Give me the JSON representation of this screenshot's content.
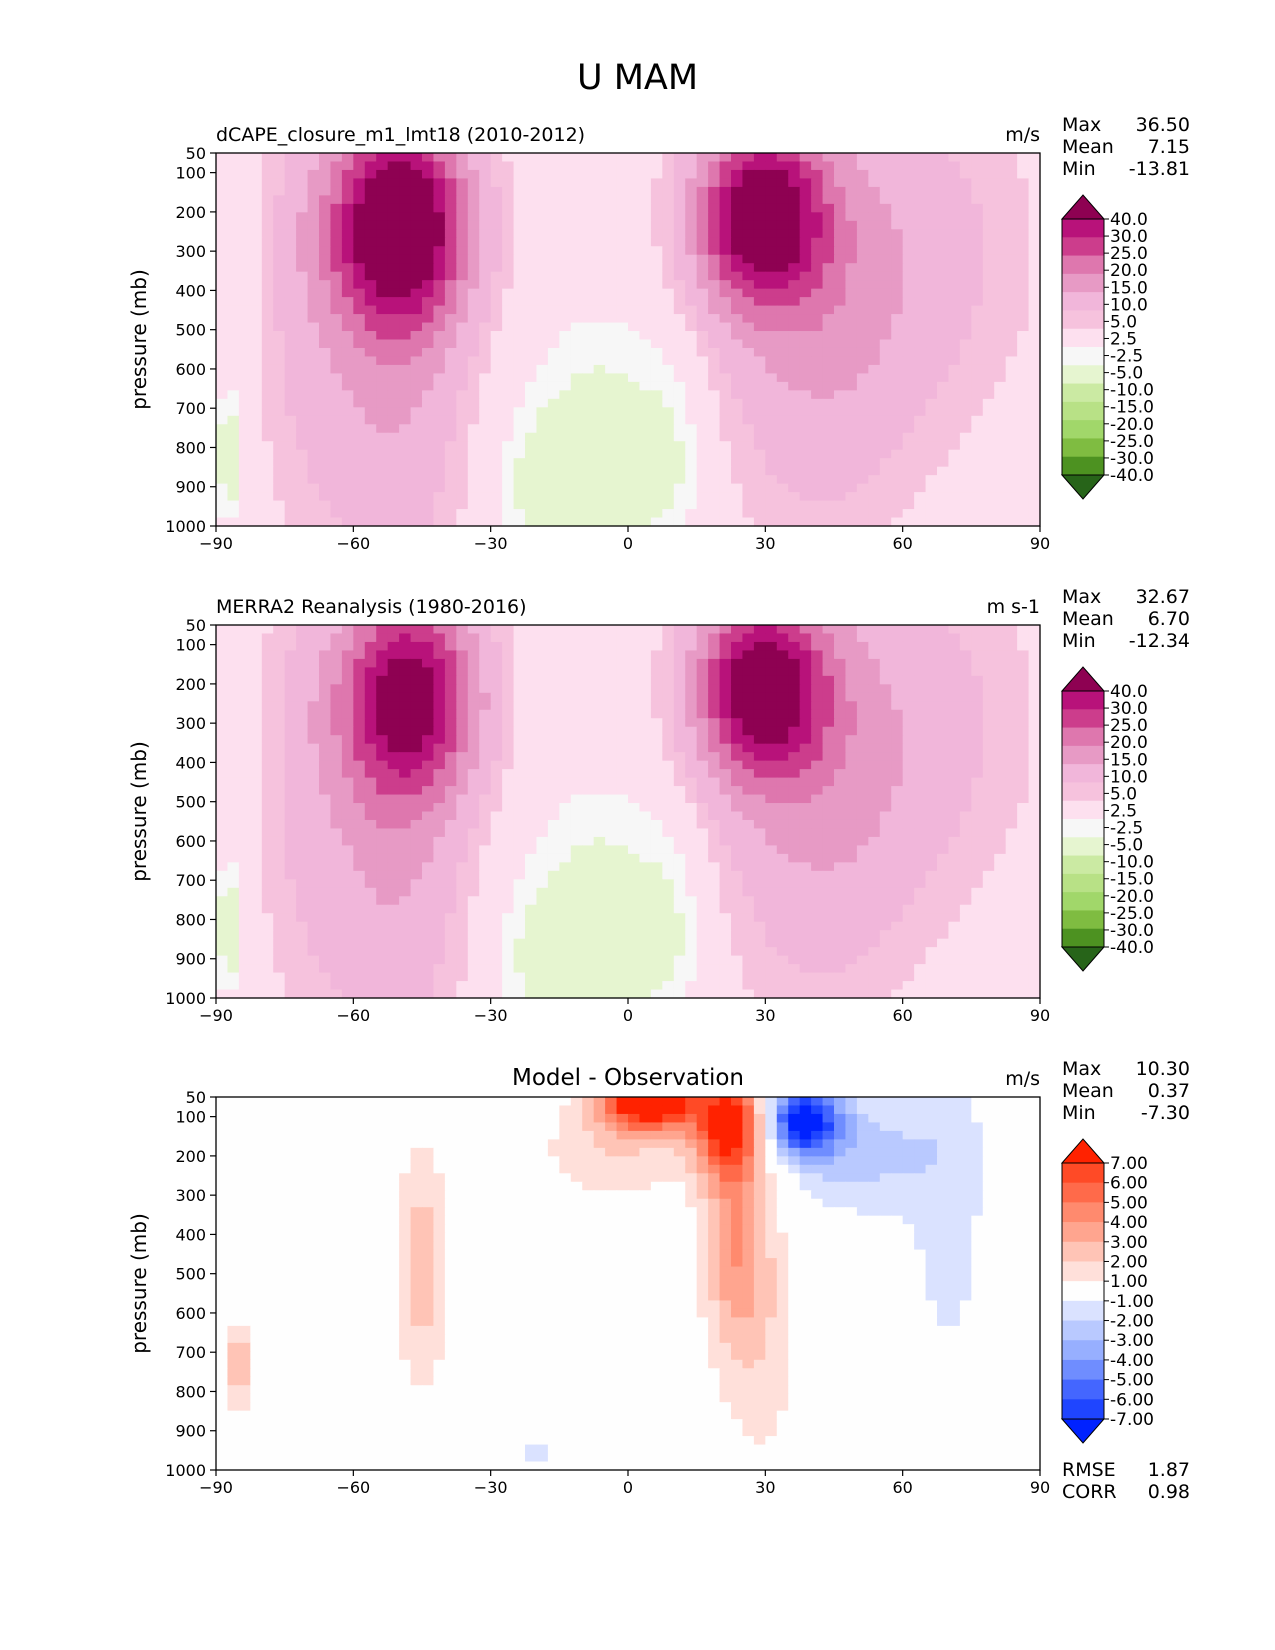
{
  "figure_title": "U MAM",
  "colors": {
    "pinkgreen": [
      "#276419",
      "#4d9221",
      "#7fbc41",
      "#a1d76a",
      "#b8e186",
      "#cbeaa3",
      "#e6f5d0",
      "#f7f7f7",
      "#fde0ef",
      "#f6c2dd",
      "#f1b6da",
      "#e79ac5",
      "#de77ae",
      "#cc3d8c",
      "#b8127a",
      "#8e0152"
    ],
    "bluered": [
      "#0022ff",
      "#1f45ff",
      "#4466ff",
      "#6f8dff",
      "#97afff",
      "#b9c9ff",
      "#dae2ff",
      "#fefefe",
      "#ffe0da",
      "#ffc4b6",
      "#ffa58f",
      "#ff8a6e",
      "#ff6a4a",
      "#ff4a26",
      "#ff2200"
    ]
  },
  "panels": [
    {
      "left_title": "dCAPE_closure_m1_lmt18 (2010-2012)",
      "units": "m/s",
      "stats": [
        {
          "label": "Max",
          "value": "36.50"
        },
        {
          "label": "Mean",
          "value": "7.15"
        },
        {
          "label": "Min",
          "value": "-13.81"
        }
      ],
      "colorbar_labels": [
        "40.0",
        "30.0",
        "25.0",
        "20.0",
        "15.0",
        "10.0",
        "5.0",
        "2.5",
        "-2.5",
        "-5.0",
        "-10.0",
        "-15.0",
        "-20.0",
        "-25.0",
        "-30.0",
        "-40.0"
      ]
    },
    {
      "left_title": "MERRA2 Reanalysis (1980-2016)",
      "units": "m s-1",
      "stats": [
        {
          "label": "Max",
          "value": "32.67"
        },
        {
          "label": "Mean",
          "value": "6.70"
        },
        {
          "label": "Min",
          "value": "-12.34"
        }
      ],
      "colorbar_labels": [
        "40.0",
        "30.0",
        "25.0",
        "20.0",
        "15.0",
        "10.0",
        "5.0",
        "2.5",
        "-2.5",
        "-5.0",
        "-10.0",
        "-15.0",
        "-20.0",
        "-25.0",
        "-30.0",
        "-40.0"
      ]
    },
    {
      "center_title": "Model - Observation",
      "units": "m/s",
      "stats": [
        {
          "label": "Max",
          "value": "10.30"
        },
        {
          "label": "Mean",
          "value": "0.37"
        },
        {
          "label": "Min",
          "value": "-7.30"
        }
      ],
      "colorbar_labels": [
        "7.00",
        "6.00",
        "5.00",
        "4.00",
        "3.00",
        "2.00",
        "1.00",
        "-1.00",
        "-2.00",
        "-3.00",
        "-4.00",
        "-5.00",
        "-6.00",
        "-7.00"
      ],
      "bottom_stats": [
        {
          "label": "RMSE",
          "value": "1.87"
        },
        {
          "label": "CORR",
          "value": "0.98"
        }
      ]
    }
  ],
  "chart_data": [
    {
      "type": "contour",
      "title": "dCAPE_closure_m1_lmt18 (2010-2012)",
      "variable": "U MAM",
      "units": "m/s",
      "xlabel": "",
      "ylabel": "pressure (mb)",
      "xlim": [
        -90,
        90
      ],
      "ylim": [
        1000,
        50
      ],
      "xticks": [
        "−90",
        "−60",
        "−30",
        "0",
        "30",
        "60",
        "90"
      ],
      "yticks": [
        "50",
        "100",
        "200",
        "300",
        "400",
        "500",
        "600",
        "700",
        "800",
        "900",
        "1000"
      ],
      "levels": [
        -40,
        -30,
        -25,
        -20,
        -15,
        -10,
        -5,
        -2.5,
        2.5,
        5,
        10,
        15,
        20,
        25,
        30,
        40
      ],
      "jets": [
        {
          "lat": -50,
          "pressure": 250,
          "value": 36.5
        },
        {
          "lat": 28,
          "pressure": 200,
          "value": 34
        }
      ],
      "max": 36.5,
      "mean": 7.15,
      "min": -13.81
    },
    {
      "type": "contour",
      "title": "MERRA2 Reanalysis (1980-2016)",
      "variable": "U MAM",
      "units": "m s-1",
      "xlabel": "",
      "ylabel": "pressure (mb)",
      "xlim": [
        -90,
        90
      ],
      "ylim": [
        1000,
        50
      ],
      "xticks": [
        "−90",
        "−60",
        "−30",
        "0",
        "30",
        "60",
        "90"
      ],
      "yticks": [
        "50",
        "100",
        "200",
        "300",
        "400",
        "500",
        "600",
        "700",
        "800",
        "900",
        "1000"
      ],
      "levels": [
        -40,
        -30,
        -25,
        -20,
        -15,
        -10,
        -5,
        -2.5,
        2.5,
        5,
        10,
        15,
        20,
        25,
        30,
        40
      ],
      "jets": [
        {
          "lat": -48,
          "pressure": 220,
          "value": 29
        },
        {
          "lat": 30,
          "pressure": 200,
          "value": 32.67
        }
      ],
      "max": 32.67,
      "mean": 6.7,
      "min": -12.34
    },
    {
      "type": "contour",
      "title": "Model - Observation",
      "variable": "U MAM difference",
      "units": "m/s",
      "xlabel": "",
      "ylabel": "pressure (mb)",
      "xlim": [
        -90,
        90
      ],
      "ylim": [
        1000,
        50
      ],
      "xticks": [
        "−90",
        "−60",
        "−30",
        "0",
        "30",
        "60",
        "90"
      ],
      "yticks": [
        "50",
        "100",
        "200",
        "300",
        "400",
        "500",
        "600",
        "700",
        "800",
        "900",
        "1000"
      ],
      "levels": [
        -7,
        -6,
        -5,
        -4,
        -3,
        -2,
        -1,
        1,
        2,
        3,
        4,
        5,
        6,
        7
      ],
      "max": 10.3,
      "mean": 0.37,
      "min": -7.3,
      "rmse": 1.87,
      "corr": 0.98
    }
  ]
}
